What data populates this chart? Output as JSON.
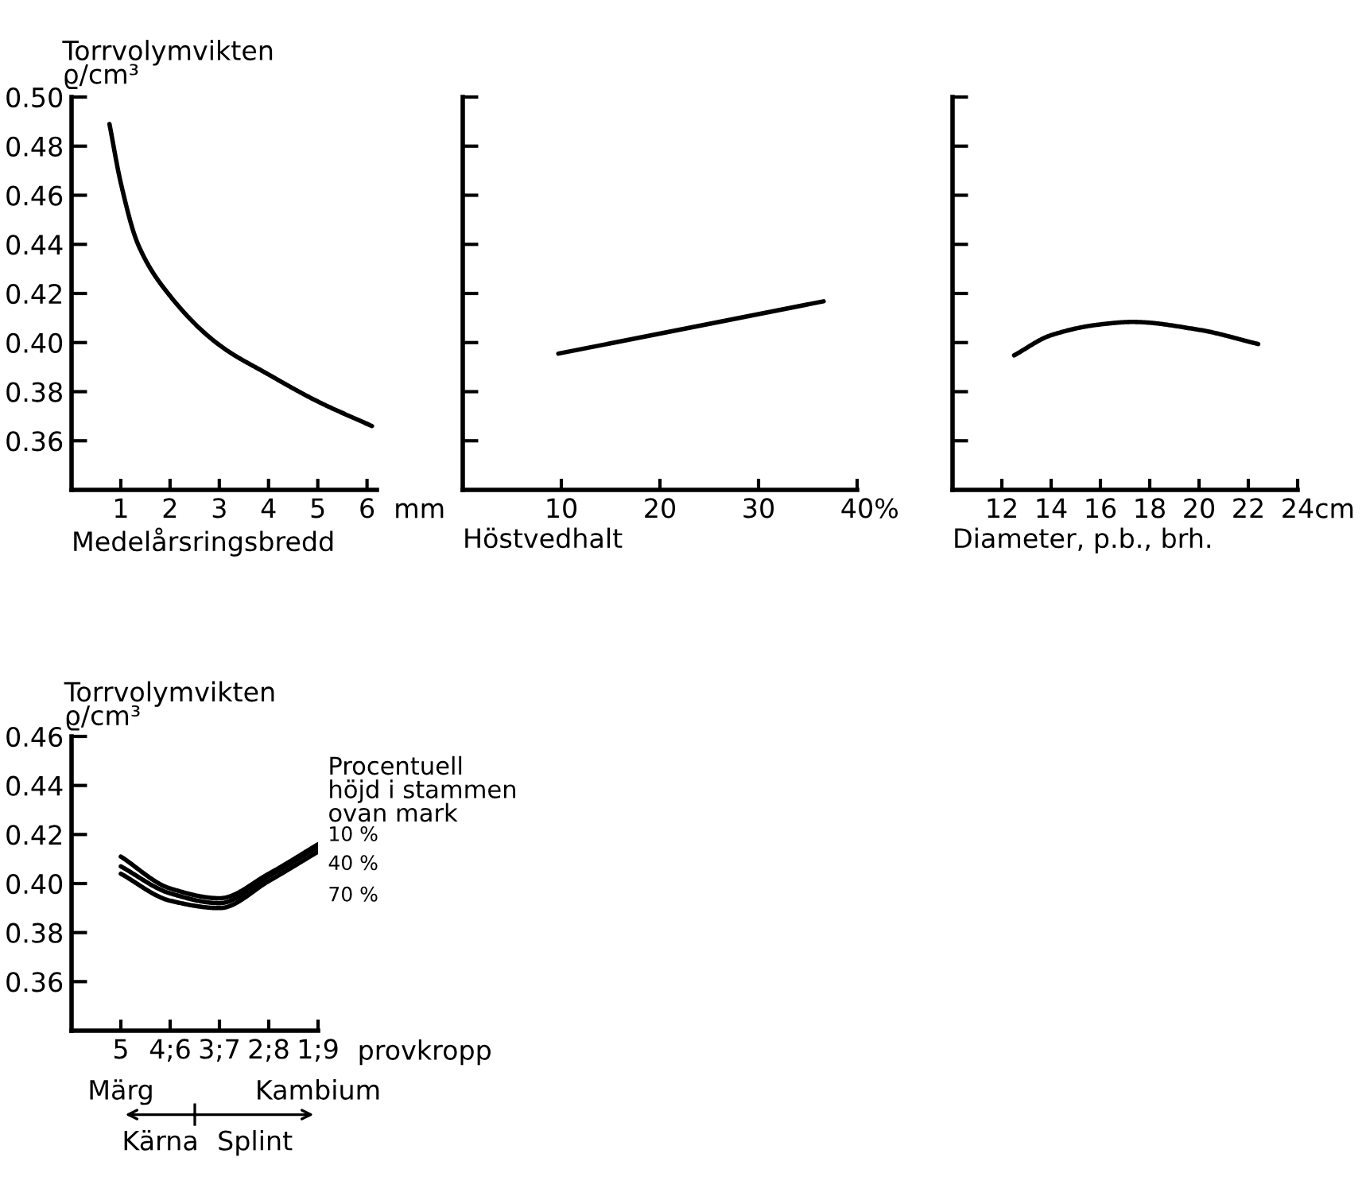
{
  "chart_data": [
    {
      "type": "line",
      "ylabel": "Torrvolymvikten\nϱ/cm³",
      "xlabel": "Medelårsringsbredd",
      "annotations": [
        "mm"
      ],
      "x": [
        0.77,
        1.0,
        1.35,
        2.0,
        3.0,
        4.0,
        5.0,
        6.1
      ],
      "series": [
        {
          "color": "#000000",
          "values": [
            0.489,
            0.465,
            0.44,
            0.419,
            0.399,
            0.387,
            0.376,
            0.366
          ]
        }
      ],
      "xlim": [
        0,
        6.2
      ],
      "ylim": [
        0.34,
        0.5
      ],
      "xticks": [
        1,
        2,
        3,
        4,
        5,
        6
      ],
      "yticks": [
        {
          "value": 0.36,
          "label": "0.36"
        },
        {
          "value": 0.38,
          "label": "0.38"
        },
        {
          "value": 0.4,
          "label": "0.40"
        },
        {
          "value": 0.42,
          "label": "0.42"
        },
        {
          "value": 0.44,
          "label": "0.44"
        },
        {
          "value": 0.46,
          "label": "0.46"
        },
        {
          "value": 0.48,
          "label": "0.48"
        },
        {
          "value": 0.5,
          "label": "0.50"
        }
      ],
      "grid": false,
      "legend": false
    },
    {
      "type": "line",
      "xlabel": "Höstvedhalt",
      "annotations": [
        "%"
      ],
      "x": [
        9.7,
        36.6
      ],
      "series": [
        {
          "color": "#000000",
          "values": [
            0.3955,
            0.4168
          ]
        }
      ],
      "xlim": [
        0,
        40
      ],
      "ylim": [
        0.34,
        0.5
      ],
      "xticks": [
        10,
        20,
        30,
        40
      ],
      "yticks": [
        0.36,
        0.38,
        0.4,
        0.42,
        0.44,
        0.46,
        0.48,
        0.5
      ],
      "tick_labels": "x",
      "grid": false,
      "legend": false
    },
    {
      "type": "line",
      "xlabel": "Diameter, p.b., brh.",
      "annotations": [
        "cm"
      ],
      "x": [
        12.5,
        14,
        16,
        17.3,
        20,
        22.4
      ],
      "series": [
        {
          "color": "#000000",
          "values": [
            0.3948,
            0.403,
            0.4074,
            0.4084,
            0.4052,
            0.3994
          ]
        }
      ],
      "xlim": [
        10,
        24
      ],
      "ylim": [
        0.34,
        0.5
      ],
      "xticks": [
        12,
        14,
        16,
        18,
        20,
        22,
        24
      ],
      "yticks": [
        0.36,
        0.38,
        0.4,
        0.42,
        0.44,
        0.46,
        0.48,
        0.5
      ],
      "tick_labels": "x",
      "grid": false,
      "legend": false
    },
    {
      "type": "line",
      "ylabel": "Torrvolymvikten\nϱ/cm³",
      "xlabel": "provkropp",
      "legend_title": "Procentuell\nhöjd i stammen\novan mark",
      "annotations": [
        "Märg",
        "Kambium",
        "Kärna",
        "Splint"
      ],
      "categories": [
        "5",
        "4;6",
        "3;7",
        "2;8",
        "1;9"
      ],
      "series": [
        {
          "name": "10 %",
          "color": "#000000",
          "values": [
            0.411,
            0.398,
            0.394,
            0.404,
            0.416
          ]
        },
        {
          "name": "40 %",
          "color": "#000000",
          "values": [
            0.407,
            0.396,
            0.392,
            0.403,
            0.415
          ]
        },
        {
          "name": "70 %",
          "color": "#000000",
          "values": [
            0.404,
            0.393,
            0.39,
            0.401,
            0.413
          ]
        }
      ],
      "ylim": [
        0.34,
        0.46
      ],
      "yticks": [
        {
          "value": 0.36,
          "label": "0.36"
        },
        {
          "value": 0.38,
          "label": "0.38"
        },
        {
          "value": 0.4,
          "label": "0.40"
        },
        {
          "value": 0.42,
          "label": "0.42"
        },
        {
          "value": 0.44,
          "label": "0.44"
        },
        {
          "value": 0.46,
          "label": "0.46"
        }
      ],
      "grid": false,
      "legend": false
    }
  ]
}
